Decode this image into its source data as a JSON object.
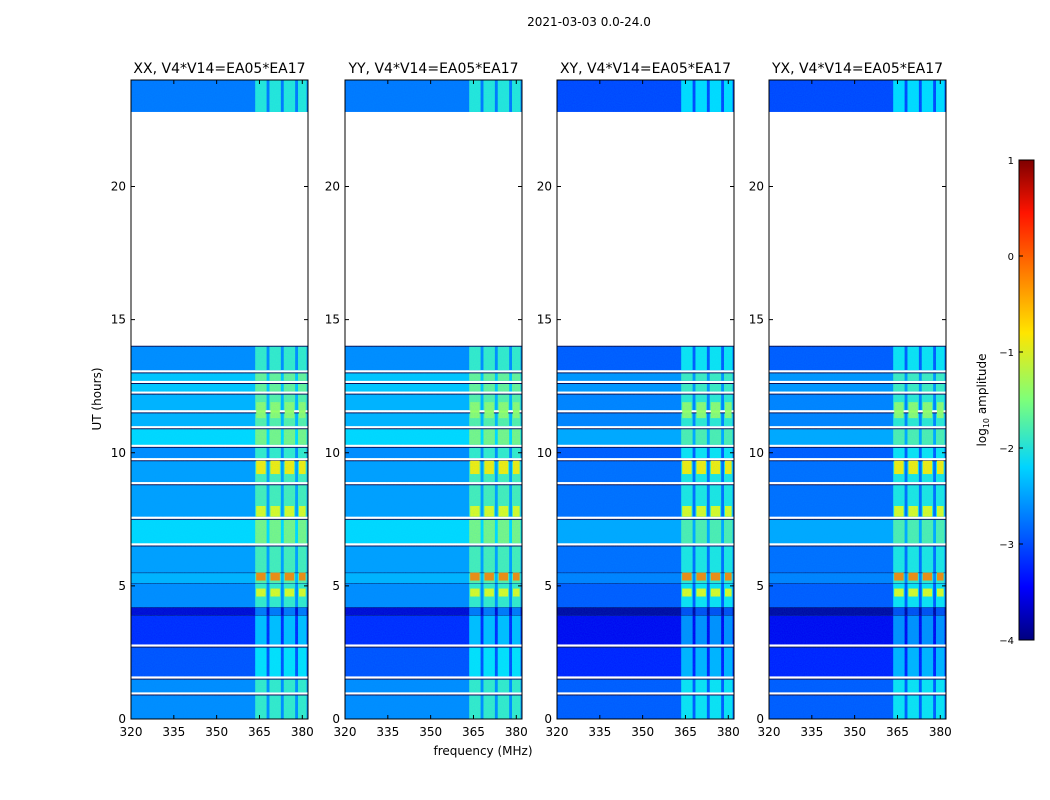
{
  "chart_data": {
    "type": "heatmap",
    "suptitle": "2021-03-03 0.0-24.0",
    "xlabel": "frequency (MHz)",
    "ylabel": "UT (hours)",
    "xlim": [
      320,
      382
    ],
    "ylim": [
      0,
      24
    ],
    "x_ticks": [
      "320",
      "335",
      "350",
      "365",
      "380"
    ],
    "y_ticks": [
      "0",
      "5",
      "10",
      "15",
      "20"
    ],
    "colorbar": {
      "label": "log10 amplitude",
      "range": [
        -4,
        1
      ],
      "ticks": [
        "1",
        "0",
        "−1",
        "−2",
        "−3",
        "−4"
      ],
      "colormap": "jet"
    },
    "panels": [
      {
        "title": "XX, V4*V14=EA05*EA17",
        "pol": "XX"
      },
      {
        "title": "YY, V4*V14=EA05*EA17",
        "pol": "YY"
      },
      {
        "title": "XY, V4*V14=EA05*EA17",
        "pol": "XY"
      },
      {
        "title": "YX, V4*V14=EA05*EA17",
        "pol": "YX"
      }
    ],
    "time_blocks_hours": [
      {
        "start": 0.0,
        "end": 0.9,
        "level": -2.7
      },
      {
        "start": 1.0,
        "end": 1.5,
        "level": -2.7
      },
      {
        "start": 1.6,
        "end": 2.7,
        "level": -3.0
      },
      {
        "start": 2.8,
        "end": 3.9,
        "level": -3.2
      },
      {
        "start": 3.9,
        "end": 4.2,
        "level": -3.6
      },
      {
        "start": 4.2,
        "end": 5.1,
        "level": -2.7
      },
      {
        "start": 5.1,
        "end": 5.5,
        "level": -2.5
      },
      {
        "start": 5.5,
        "end": 6.5,
        "level": -2.6
      },
      {
        "start": 6.6,
        "end": 7.5,
        "level": -2.3
      },
      {
        "start": 7.6,
        "end": 8.8,
        "level": -2.6
      },
      {
        "start": 8.9,
        "end": 9.7,
        "level": -2.6
      },
      {
        "start": 9.8,
        "end": 10.2,
        "level": -2.7
      },
      {
        "start": 10.3,
        "end": 10.9,
        "level": -2.3
      },
      {
        "start": 11.0,
        "end": 11.5,
        "level": -2.5
      },
      {
        "start": 11.6,
        "end": 12.2,
        "level": -2.5
      },
      {
        "start": 12.3,
        "end": 12.6,
        "level": -2.4
      },
      {
        "start": 12.7,
        "end": 13.0,
        "level": -2.4
      },
      {
        "start": 13.1,
        "end": 14.0,
        "level": -2.7
      },
      {
        "start": 22.8,
        "end": 24.0,
        "level": -2.8
      }
    ],
    "rfi_band_mhz": [
      363,
      381
    ],
    "rfi_subbands_mhz": [
      [
        363.5,
        367.5
      ],
      [
        368.5,
        372.5
      ],
      [
        373.5,
        377.5
      ],
      [
        378.5,
        381.5
      ]
    ],
    "bright_time_hours": [
      {
        "start": 5.2,
        "end": 5.5,
        "level": -0.3
      },
      {
        "start": 4.6,
        "end": 4.9,
        "level": -1.0
      },
      {
        "start": 9.2,
        "end": 9.7,
        "level": -0.8
      },
      {
        "start": 7.6,
        "end": 8.0,
        "level": -1.0
      },
      {
        "start": 11.3,
        "end": 11.9,
        "level": -1.4
      }
    ]
  }
}
